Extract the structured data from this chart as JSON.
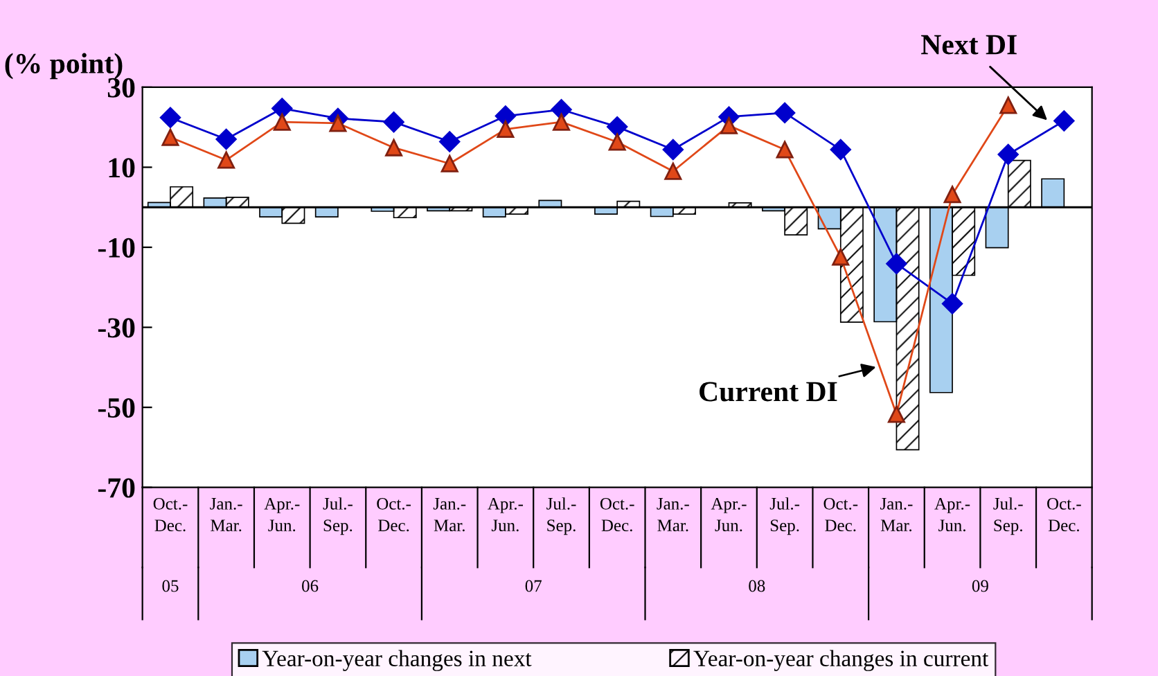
{
  "chart_data": {
    "type": "bar",
    "ylabel": "(% point)",
    "categories": [
      "Oct.-Dec.",
      "Jan.-Mar.",
      "Apr.-Jun.",
      "Jul.-Sep.",
      "Oct.-Dec.",
      "Jan.-Mar.",
      "Apr.-Jun.",
      "Jul.-Sep.",
      "Oct.-Dec.",
      "Jan.-Mar.",
      "Apr.-Jun.",
      "Jul.-Sep.",
      "Oct.-Dec.",
      "Jan.-Mar.",
      "Apr.-Jun.",
      "Jul.-Sep.",
      "Oct.-Dec."
    ],
    "annotations": [
      "05",
      "06",
      "07",
      "08",
      "09"
    ],
    "series": [
      {
        "name": "Year-on-year changes in next",
        "color": "#a8d0f0",
        "values": [
          1.2,
          2.3,
          -2.4,
          -2.4,
          -1.0,
          -0.9,
          -2.4,
          1.7,
          -1.7,
          -2.3,
          null,
          -0.9,
          -5.4,
          -28.6,
          -46.3,
          -10.1,
          7.1
        ]
      },
      {
        "name": "Year-on-year changes in current",
        "color": "#000000",
        "values": [
          5.1,
          2.5,
          -4.0,
          null,
          -2.6,
          -0.9,
          -1.7,
          null,
          1.5,
          -1.7,
          1.1,
          -6.9,
          -28.7,
          -60.6,
          -17.0,
          11.7,
          null
        ]
      },
      {
        "name": "Next DI",
        "type": "line",
        "marker": "diamond",
        "color": "#0000cc",
        "values": [
          22.4,
          17.0,
          24.7,
          22.2,
          21.3,
          16.4,
          22.8,
          24.4,
          20.1,
          14.4,
          22.6,
          23.6,
          14.4,
          -14.1,
          -24.1,
          13.2,
          21.6
        ]
      },
      {
        "name": "Current DI",
        "type": "line",
        "marker": "triangle",
        "color": "#e04818",
        "values": [
          17.5,
          11.8,
          21.3,
          21.0,
          14.9,
          10.9,
          19.5,
          21.3,
          16.3,
          9.0,
          20.4,
          14.4,
          -12.4,
          -51.7,
          3.2,
          25.5,
          null
        ]
      }
    ],
    "ylim": [
      -70,
      30
    ],
    "yticks": [
      30,
      10,
      -10,
      -30,
      -50,
      -70
    ],
    "legend": "bottom",
    "grid": false
  }
}
